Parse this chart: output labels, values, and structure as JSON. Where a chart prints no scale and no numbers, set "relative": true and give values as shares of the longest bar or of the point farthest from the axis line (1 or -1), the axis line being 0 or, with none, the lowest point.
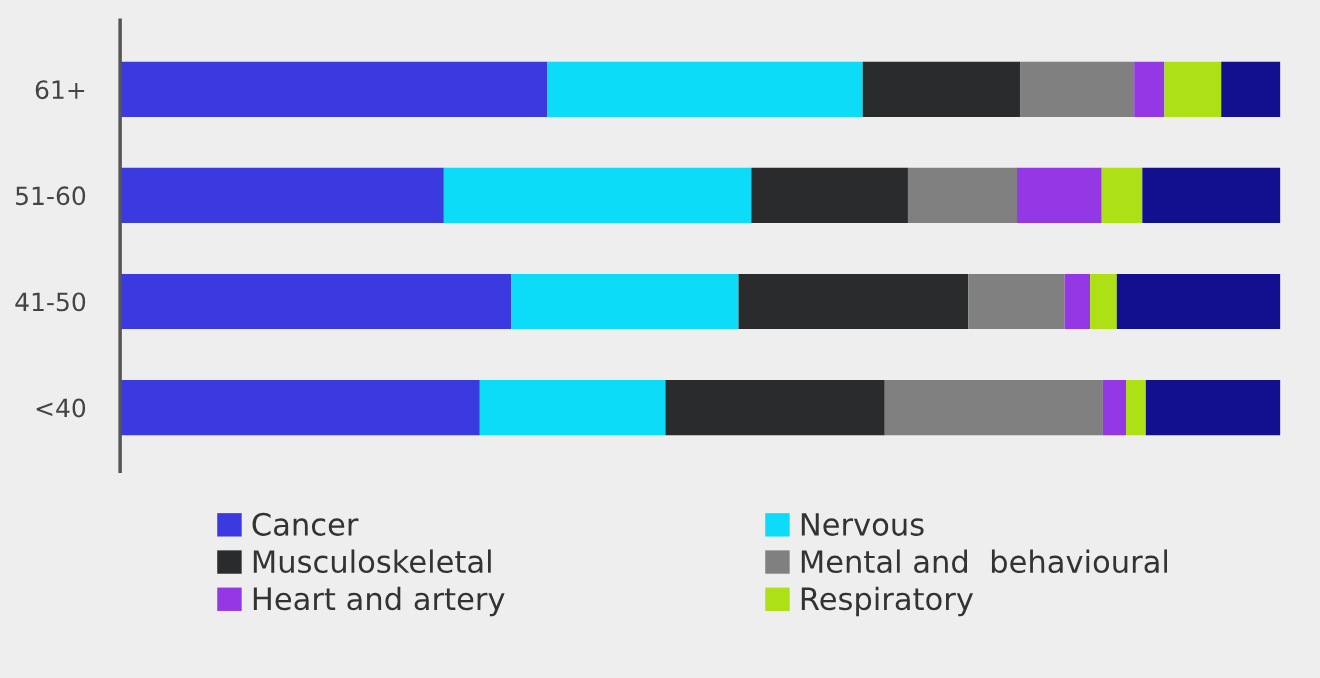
{
  "chart_data": {
    "type": "bar",
    "orientation": "horizontal",
    "stacked": true,
    "relative": true,
    "legend": "bottom",
    "grid": false,
    "categories": [
      "61+",
      "51-60",
      "41-50",
      "<40"
    ],
    "series": [
      {
        "name": "Cancer",
        "color": "#3a3ae0",
        "values": [
          0.368,
          0.279,
          0.337,
          0.31
        ]
      },
      {
        "name": "Nervous",
        "color": "#0ddcf8",
        "values": [
          0.272,
          0.265,
          0.196,
          0.16
        ]
      },
      {
        "name": "Musculoskeletal",
        "color": "#2a2b2c",
        "values": [
          0.136,
          0.135,
          0.198,
          0.189
        ]
      },
      {
        "name": "Mental and  behavioural",
        "color": "#808080",
        "values": [
          0.098,
          0.094,
          0.083,
          0.188
        ]
      },
      {
        "name": "Heart and artery",
        "color": "#9438e6",
        "values": [
          0.026,
          0.073,
          0.022,
          0.02
        ]
      },
      {
        "name": "Respiratory",
        "color": "#aee016",
        "values": [
          0.049,
          0.035,
          0.023,
          0.017
        ]
      },
      {
        "color": "#13108f",
        "values": [
          0.051,
          0.119,
          0.141,
          0.116
        ]
      }
    ]
  }
}
